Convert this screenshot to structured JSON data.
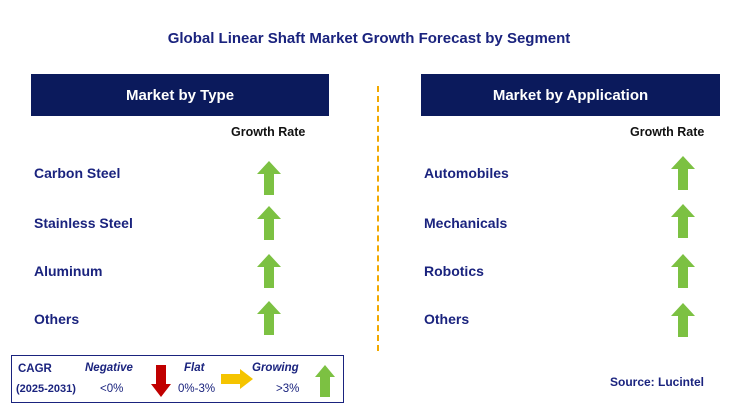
{
  "title": "Global Linear Shaft Market Growth Forecast by Segment",
  "left_panel": {
    "header": "Market by Type",
    "growth_label": "Growth Rate",
    "items": [
      {
        "label": "Carbon Steel",
        "trend": "growing"
      },
      {
        "label": "Stainless Steel",
        "trend": "growing"
      },
      {
        "label": "Aluminum",
        "trend": "growing"
      },
      {
        "label": "Others",
        "trend": "growing"
      }
    ]
  },
  "right_panel": {
    "header": "Market by Application",
    "growth_label": "Growth Rate",
    "items": [
      {
        "label": "Automobiles",
        "trend": "growing"
      },
      {
        "label": "Mechanicals",
        "trend": "growing"
      },
      {
        "label": "Robotics",
        "trend": "growing"
      },
      {
        "label": "Others",
        "trend": "growing"
      }
    ]
  },
  "legend": {
    "cagr_label": "CAGR",
    "period": "(2025-2031)",
    "negative": {
      "label": "Negative",
      "range": "<0%",
      "icon": "down-arrow-icon",
      "color": "#c00000"
    },
    "flat": {
      "label": "Flat",
      "range": "0%-3%",
      "icon": "right-arrow-icon",
      "color": "#f5c400"
    },
    "growing": {
      "label": "Growing",
      "range": ">3%",
      "icon": "up-arrow-icon",
      "color": "#7cc142"
    }
  },
  "source": "Source: Lucintel",
  "colors": {
    "header_bg": "#0b1a5c",
    "text_navy": "#1a237e",
    "divider": "#f2a900",
    "arrow_up": "#7cc142"
  }
}
